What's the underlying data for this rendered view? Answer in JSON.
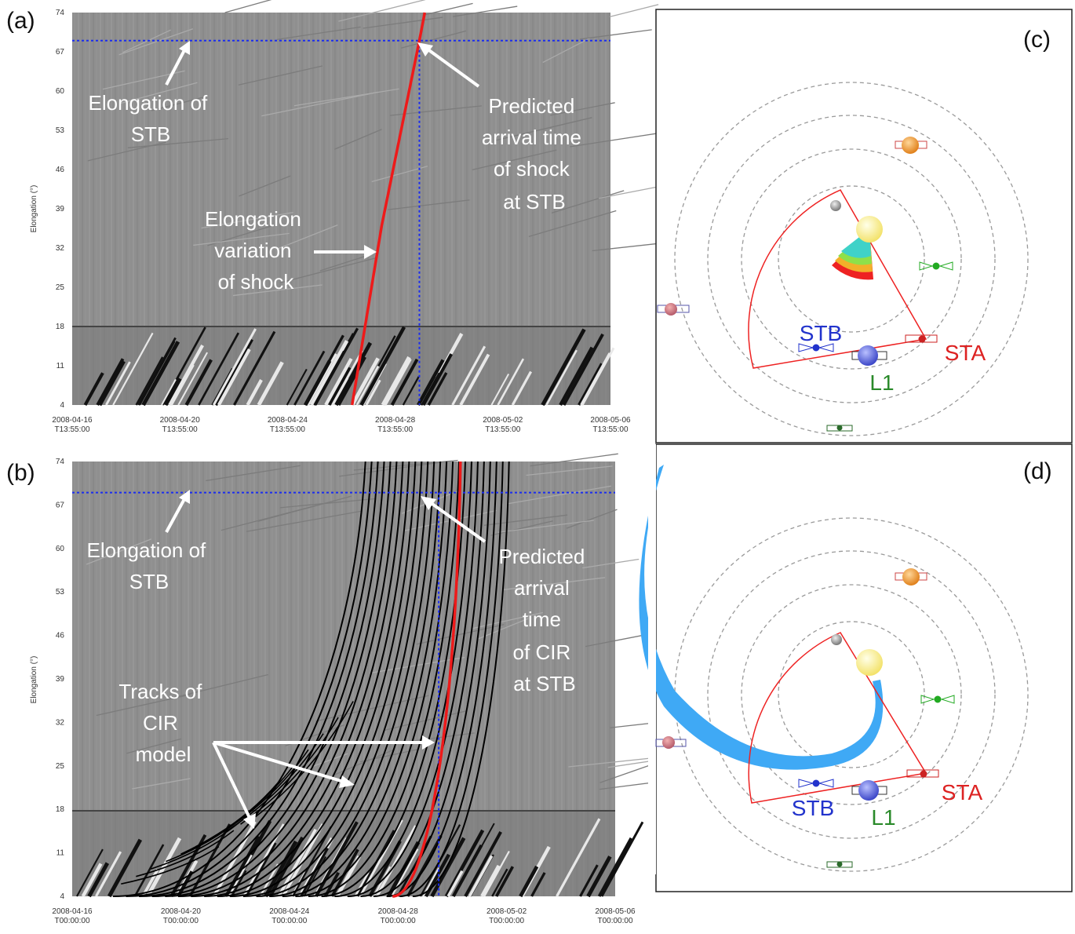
{
  "chart_data": [
    {
      "panel": "(a)",
      "type": "line",
      "ylabel": "Elongation (°)",
      "ylim": [
        4,
        74
      ],
      "yticks": [
        "4",
        "11",
        "18",
        "25",
        "32",
        "39",
        "46",
        "53",
        "60",
        "67",
        "74"
      ],
      "xticks": [
        {
          "d": "2008-04-16",
          "t": "T13:55:00"
        },
        {
          "d": "2008-04-20",
          "t": "T13:55:00"
        },
        {
          "d": "2008-04-24",
          "t": "T13:55:00"
        },
        {
          "d": "2008-04-28",
          "t": "T13:55:00"
        },
        {
          "d": "2008-05-02",
          "t": "T13:55:00"
        },
        {
          "d": "2008-05-06",
          "t": "T13:55:00"
        }
      ],
      "stb_elongation": 69,
      "predicted_arrival_day": 12.9,
      "shock_track": {
        "x": [
          10.4,
          11.5,
          12.9,
          13.1
        ],
        "y": [
          4,
          36,
          69,
          74
        ]
      },
      "annotations": {
        "elong_stb": [
          "Elongation of",
          "STB"
        ],
        "shock_var": [
          "Elongation",
          "variation",
          "of shock"
        ],
        "predicted": [
          "Predicted",
          "arrival time",
          "of shock",
          "at STB"
        ]
      }
    },
    {
      "panel": "(b)",
      "type": "line",
      "ylabel": "Elongation (°)",
      "ylim": [
        4,
        74
      ],
      "yticks": [
        "4",
        "11",
        "18",
        "25",
        "32",
        "39",
        "46",
        "53",
        "60",
        "67",
        "74"
      ],
      "xticks": [
        {
          "d": "2008-04-16",
          "t": "T00:00:00"
        },
        {
          "d": "2008-04-20",
          "t": "T00:00:00"
        },
        {
          "d": "2008-04-24",
          "t": "T00:00:00"
        },
        {
          "d": "2008-04-28",
          "t": "T00:00:00"
        },
        {
          "d": "2008-05-02",
          "t": "T00:00:00"
        },
        {
          "d": "2008-05-06",
          "t": "T00:00:00"
        }
      ],
      "stb_elongation": 69,
      "predicted_arrival_day": 13.5,
      "cir_track": {
        "x0": 11.8,
        "x1": 14.3
      },
      "annotations": {
        "elong_stb": [
          "Elongation of",
          "STB"
        ],
        "tracks": [
          "Tracks of",
          "CIR",
          "model"
        ],
        "predicted": [
          "Predicted",
          "arrival",
          "time",
          "of CIR",
          "at STB"
        ]
      }
    }
  ],
  "panels": {
    "a": "(a)",
    "b": "(b)",
    "c": "(c)",
    "d": "(d)"
  },
  "orbit": {
    "stb": "STB",
    "sta": "STA",
    "l1": "L1",
    "colors": {
      "stb": "#2233cc",
      "sta": "#dd2222",
      "l1": "#2a8a2a",
      "cir": "#3fa9f5"
    }
  }
}
